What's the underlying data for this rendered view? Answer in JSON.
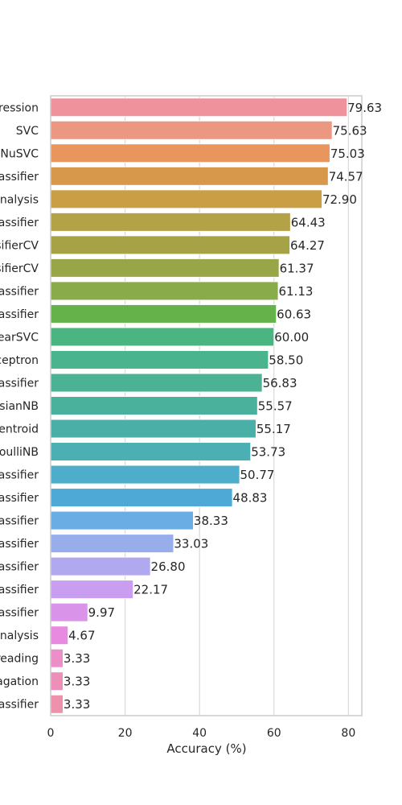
{
  "chart_data": {
    "type": "bar",
    "orientation": "horizontal",
    "xlabel": "Accuracy (%)",
    "ylabel": "",
    "xlim": [
      0,
      83.6
    ],
    "xticks": [
      0,
      20,
      40,
      60,
      80
    ],
    "grid": "x",
    "categories": [
      "ression",
      "SVC",
      "NuSVC",
      "assifier",
      "Analysis",
      "assifier",
      "sifierCV",
      "sifierCV",
      "assifier",
      "assifier",
      "earSVC",
      "ceptron",
      "assifier",
      "sianNB",
      "entroid",
      "oulliNB",
      "assifier",
      "assifier",
      "assifier",
      "assifier",
      "assifier",
      "assifier",
      "assifier",
      "Analysis",
      "reading",
      "agation",
      "assifier"
    ],
    "values": [
      79.63,
      75.63,
      75.03,
      74.57,
      72.9,
      64.43,
      64.27,
      61.37,
      61.13,
      60.63,
      60.0,
      58.5,
      56.83,
      55.57,
      55.17,
      53.73,
      50.77,
      48.83,
      38.33,
      33.03,
      26.8,
      22.17,
      9.97,
      4.67,
      3.33,
      3.33,
      3.33
    ],
    "value_labels": [
      "79.63",
      "75.63",
      "75.03",
      "74.57",
      "72.90",
      "64.43",
      "64.27",
      "61.37",
      "61.13",
      "60.63",
      "60.00",
      "58.50",
      "56.83",
      "55.57",
      "55.17",
      "53.73",
      "50.77",
      "48.83",
      "38.33",
      "33.03",
      "26.80",
      "22.17",
      "9.97",
      "4.67",
      "3.33",
      "3.33",
      "3.33"
    ],
    "colors": [
      "#f0929c",
      "#ec9781",
      "#e8965e",
      "#d7984c",
      "#c99e45",
      "#b3a246",
      "#a6a346",
      "#98a648",
      "#89ab4a",
      "#65b24a",
      "#4bb581",
      "#4ab48f",
      "#4bb294",
      "#4ab19c",
      "#4ab0a7",
      "#4cafb4",
      "#4eadca",
      "#4ea9d6",
      "#6aade4",
      "#97aeeb",
      "#b1a9ef",
      "#c99df0",
      "#d993e9",
      "#e88be0",
      "#ec8ec8",
      "#ec8fb9",
      "#ee91ad"
    ]
  }
}
